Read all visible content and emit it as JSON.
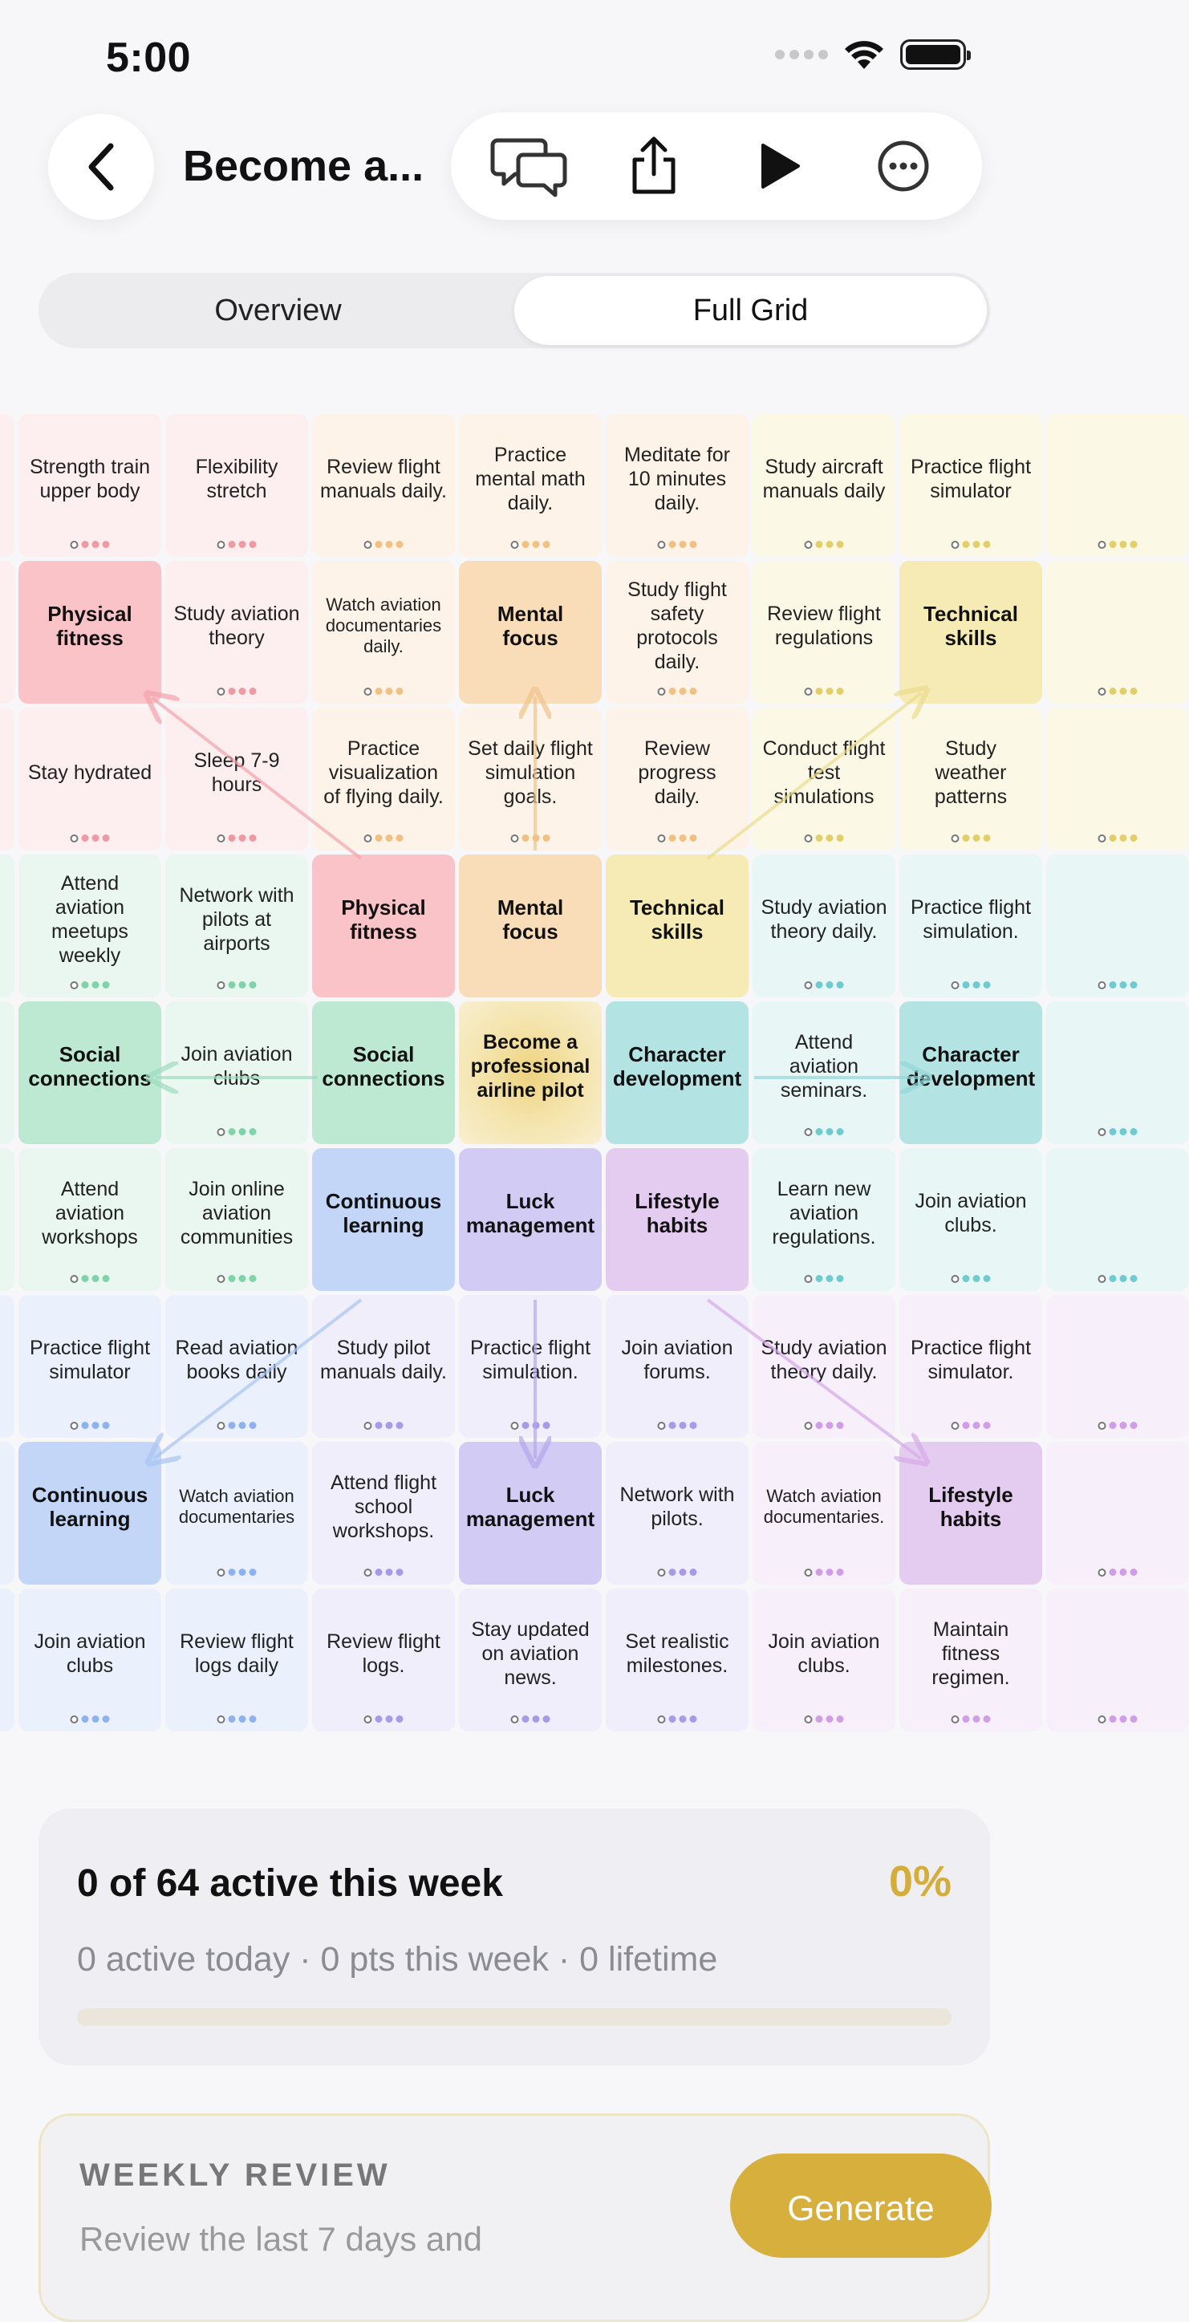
{
  "status_bar": {
    "time": "5:00"
  },
  "toolbar": {
    "title": "Become a..."
  },
  "tabs": [
    {
      "label": "Overview",
      "active": false
    },
    {
      "label": "Full Grid",
      "active": true
    }
  ],
  "grid": {
    "rows": [
      [
        {
          "text": "",
          "kind": "leaf",
          "theme": "pink"
        },
        {
          "text": "Strength train upper body",
          "kind": "leaf",
          "theme": "pink"
        },
        {
          "text": "Flexibility stretch",
          "kind": "leaf",
          "theme": "pink"
        },
        {
          "text": "Review flight manuals daily.",
          "kind": "leaf",
          "theme": "peach"
        },
        {
          "text": "Practice mental math daily.",
          "kind": "leaf",
          "theme": "peach"
        },
        {
          "text": "Meditate for 10 minutes daily.",
          "kind": "leaf",
          "theme": "peach"
        },
        {
          "text": "Study aircraft manuals daily",
          "kind": "leaf",
          "theme": "yellow"
        },
        {
          "text": "Practice flight simulator",
          "kind": "leaf",
          "theme": "yellow"
        },
        {
          "text": "",
          "kind": "leaf",
          "theme": "yellow"
        }
      ],
      [
        {
          "text": "",
          "kind": "leaf",
          "theme": "pink"
        },
        {
          "text": "Physical fitness",
          "kind": "sub",
          "theme": "pink"
        },
        {
          "text": "Study aviation theory",
          "kind": "leaf",
          "theme": "pink"
        },
        {
          "text": "Watch aviation documentaries daily.",
          "kind": "leaf-small",
          "theme": "peach"
        },
        {
          "text": "Mental focus",
          "kind": "sub",
          "theme": "peach"
        },
        {
          "text": "Study flight safety protocols daily.",
          "kind": "leaf",
          "theme": "peach"
        },
        {
          "text": "Review flight regulations",
          "kind": "leaf",
          "theme": "yellow"
        },
        {
          "text": "Technical skills",
          "kind": "sub",
          "theme": "yellow"
        },
        {
          "text": "",
          "kind": "leaf",
          "theme": "yellow"
        }
      ],
      [
        {
          "text": "",
          "kind": "leaf",
          "theme": "pink"
        },
        {
          "text": "Stay hydrated",
          "kind": "leaf",
          "theme": "pink"
        },
        {
          "text": "Sleep 7-9 hours",
          "kind": "leaf",
          "theme": "pink"
        },
        {
          "text": "Practice visualization of flying daily.",
          "kind": "leaf",
          "theme": "peach"
        },
        {
          "text": "Set daily flight simulation goals.",
          "kind": "leaf",
          "theme": "peach"
        },
        {
          "text": "Review progress daily.",
          "kind": "leaf",
          "theme": "peach"
        },
        {
          "text": "Conduct flight test simulations",
          "kind": "leaf",
          "theme": "yellow"
        },
        {
          "text": "Study weather patterns",
          "kind": "leaf",
          "theme": "yellow"
        },
        {
          "text": "",
          "kind": "leaf",
          "theme": "yellow"
        }
      ],
      [
        {
          "text": "",
          "kind": "leaf",
          "theme": "green"
        },
        {
          "text": "Attend aviation meetups weekly",
          "kind": "leaf",
          "theme": "green"
        },
        {
          "text": "Network with pilots at airports",
          "kind": "leaf",
          "theme": "green"
        },
        {
          "text": "Physical fitness",
          "kind": "sub",
          "theme": "pink"
        },
        {
          "text": "Mental focus",
          "kind": "sub",
          "theme": "peach"
        },
        {
          "text": "Technical skills",
          "kind": "sub",
          "theme": "yellow"
        },
        {
          "text": "Study aviation theory daily.",
          "kind": "leaf",
          "theme": "teal"
        },
        {
          "text": "Practice flight simulation.",
          "kind": "leaf",
          "theme": "teal"
        },
        {
          "text": "",
          "kind": "leaf",
          "theme": "teal"
        }
      ],
      [
        {
          "text": "",
          "kind": "leaf",
          "theme": "green"
        },
        {
          "text": "Social connections",
          "kind": "sub",
          "theme": "green"
        },
        {
          "text": "Join aviation clubs",
          "kind": "leaf",
          "theme": "green"
        },
        {
          "text": "Social connections",
          "kind": "sub",
          "theme": "green"
        },
        {
          "text": "Become a professional airline pilot",
          "kind": "center",
          "theme": "gold"
        },
        {
          "text": "Character development",
          "kind": "sub",
          "theme": "teal"
        },
        {
          "text": "Attend aviation seminars.",
          "kind": "leaf",
          "theme": "teal"
        },
        {
          "text": "Character development",
          "kind": "sub",
          "theme": "teal"
        },
        {
          "text": "",
          "kind": "leaf",
          "theme": "teal"
        }
      ],
      [
        {
          "text": "",
          "kind": "leaf",
          "theme": "green"
        },
        {
          "text": "Attend aviation workshops",
          "kind": "leaf",
          "theme": "green"
        },
        {
          "text": "Join online aviation communities",
          "kind": "leaf",
          "theme": "green"
        },
        {
          "text": "Continuous learning",
          "kind": "sub",
          "theme": "blue"
        },
        {
          "text": "Luck management",
          "kind": "sub",
          "theme": "lavender"
        },
        {
          "text": "Lifestyle habits",
          "kind": "sub",
          "theme": "violet"
        },
        {
          "text": "Learn new aviation regulations.",
          "kind": "leaf",
          "theme": "teal"
        },
        {
          "text": "Join aviation clubs.",
          "kind": "leaf",
          "theme": "teal"
        },
        {
          "text": "",
          "kind": "leaf",
          "theme": "teal"
        }
      ],
      [
        {
          "text": "",
          "kind": "leaf",
          "theme": "blue"
        },
        {
          "text": "Practice flight simulator",
          "kind": "leaf",
          "theme": "blue"
        },
        {
          "text": "Read aviation books daily",
          "kind": "leaf",
          "theme": "blue"
        },
        {
          "text": "Study pilot manuals daily.",
          "kind": "leaf",
          "theme": "lavender"
        },
        {
          "text": "Practice flight simulation.",
          "kind": "leaf",
          "theme": "lavender"
        },
        {
          "text": "Join aviation forums.",
          "kind": "leaf",
          "theme": "lavender"
        },
        {
          "text": "Study aviation theory daily.",
          "kind": "leaf",
          "theme": "violet"
        },
        {
          "text": "Practice flight simulator.",
          "kind": "leaf",
          "theme": "violet"
        },
        {
          "text": "",
          "kind": "leaf",
          "theme": "violet"
        }
      ],
      [
        {
          "text": "",
          "kind": "leaf",
          "theme": "blue"
        },
        {
          "text": "Continuous learning",
          "kind": "sub",
          "theme": "blue"
        },
        {
          "text": "Watch aviation documentaries",
          "kind": "leaf-small",
          "theme": "blue"
        },
        {
          "text": "Attend flight school workshops.",
          "kind": "leaf",
          "theme": "lavender"
        },
        {
          "text": "Luck management",
          "kind": "sub",
          "theme": "lavender"
        },
        {
          "text": "Network with pilots.",
          "kind": "leaf",
          "theme": "lavender"
        },
        {
          "text": "Watch aviation documentaries.",
          "kind": "leaf-small",
          "theme": "violet"
        },
        {
          "text": "Lifestyle habits",
          "kind": "sub",
          "theme": "violet"
        },
        {
          "text": "",
          "kind": "leaf",
          "theme": "violet"
        }
      ],
      [
        {
          "text": "",
          "kind": "leaf",
          "theme": "blue"
        },
        {
          "text": "Join aviation clubs",
          "kind": "leaf",
          "theme": "blue"
        },
        {
          "text": "Review flight logs daily",
          "kind": "leaf",
          "theme": "blue"
        },
        {
          "text": "Review flight logs.",
          "kind": "leaf",
          "theme": "lavender"
        },
        {
          "text": "Stay updated on aviation news.",
          "kind": "leaf",
          "theme": "lavender"
        },
        {
          "text": "Set realistic milestones.",
          "kind": "leaf",
          "theme": "lavender"
        },
        {
          "text": "Join aviation clubs.",
          "kind": "leaf",
          "theme": "violet"
        },
        {
          "text": "Maintain fitness regimen.",
          "kind": "leaf",
          "theme": "violet"
        },
        {
          "text": "",
          "kind": "leaf",
          "theme": "violet"
        }
      ]
    ]
  },
  "themes": {
    "pink": {
      "leaf": "#fdeeef",
      "sub": "#f9c3c7",
      "dot": "#ef9aa2"
    },
    "peach": {
      "leaf": "#fdf3e8",
      "sub": "#f9dcb8",
      "dot": "#f0c182"
    },
    "yellow": {
      "leaf": "#fcf8e6",
      "sub": "#f6ebb4",
      "dot": "#e3cf6a"
    },
    "green": {
      "leaf": "#eaf7f0",
      "sub": "#bde9d2",
      "dot": "#7fd3a8"
    },
    "teal": {
      "leaf": "#e9f6f6",
      "sub": "#b4e3e4",
      "dot": "#6fcbcf"
    },
    "blue": {
      "leaf": "#ebf1fc",
      "sub": "#c3d6f7",
      "dot": "#8eb2ef"
    },
    "lavender": {
      "leaf": "#f0eefa",
      "sub": "#d2cbf3",
      "dot": "#a89ae7"
    },
    "violet": {
      "leaf": "#f7effa",
      "sub": "#e4ccf1",
      "dot": "#cf9ee6"
    },
    "gold": {
      "leaf": "#f6e7b3",
      "sub": "#f6e7b3",
      "dot": "#d4ad3a"
    }
  },
  "progress": {
    "title": "0 of 64 active this week",
    "percent": "0%",
    "percent_value": 0,
    "subtitle": "0 active today · 0 pts this week · 0 lifetime"
  },
  "weekly_review": {
    "heading": "WEEKLY REVIEW",
    "description": "Review the last 7 days and",
    "button_label": "Generate"
  },
  "colors": {
    "accent": "#d4ad3a",
    "background": "#f7f7f9"
  }
}
